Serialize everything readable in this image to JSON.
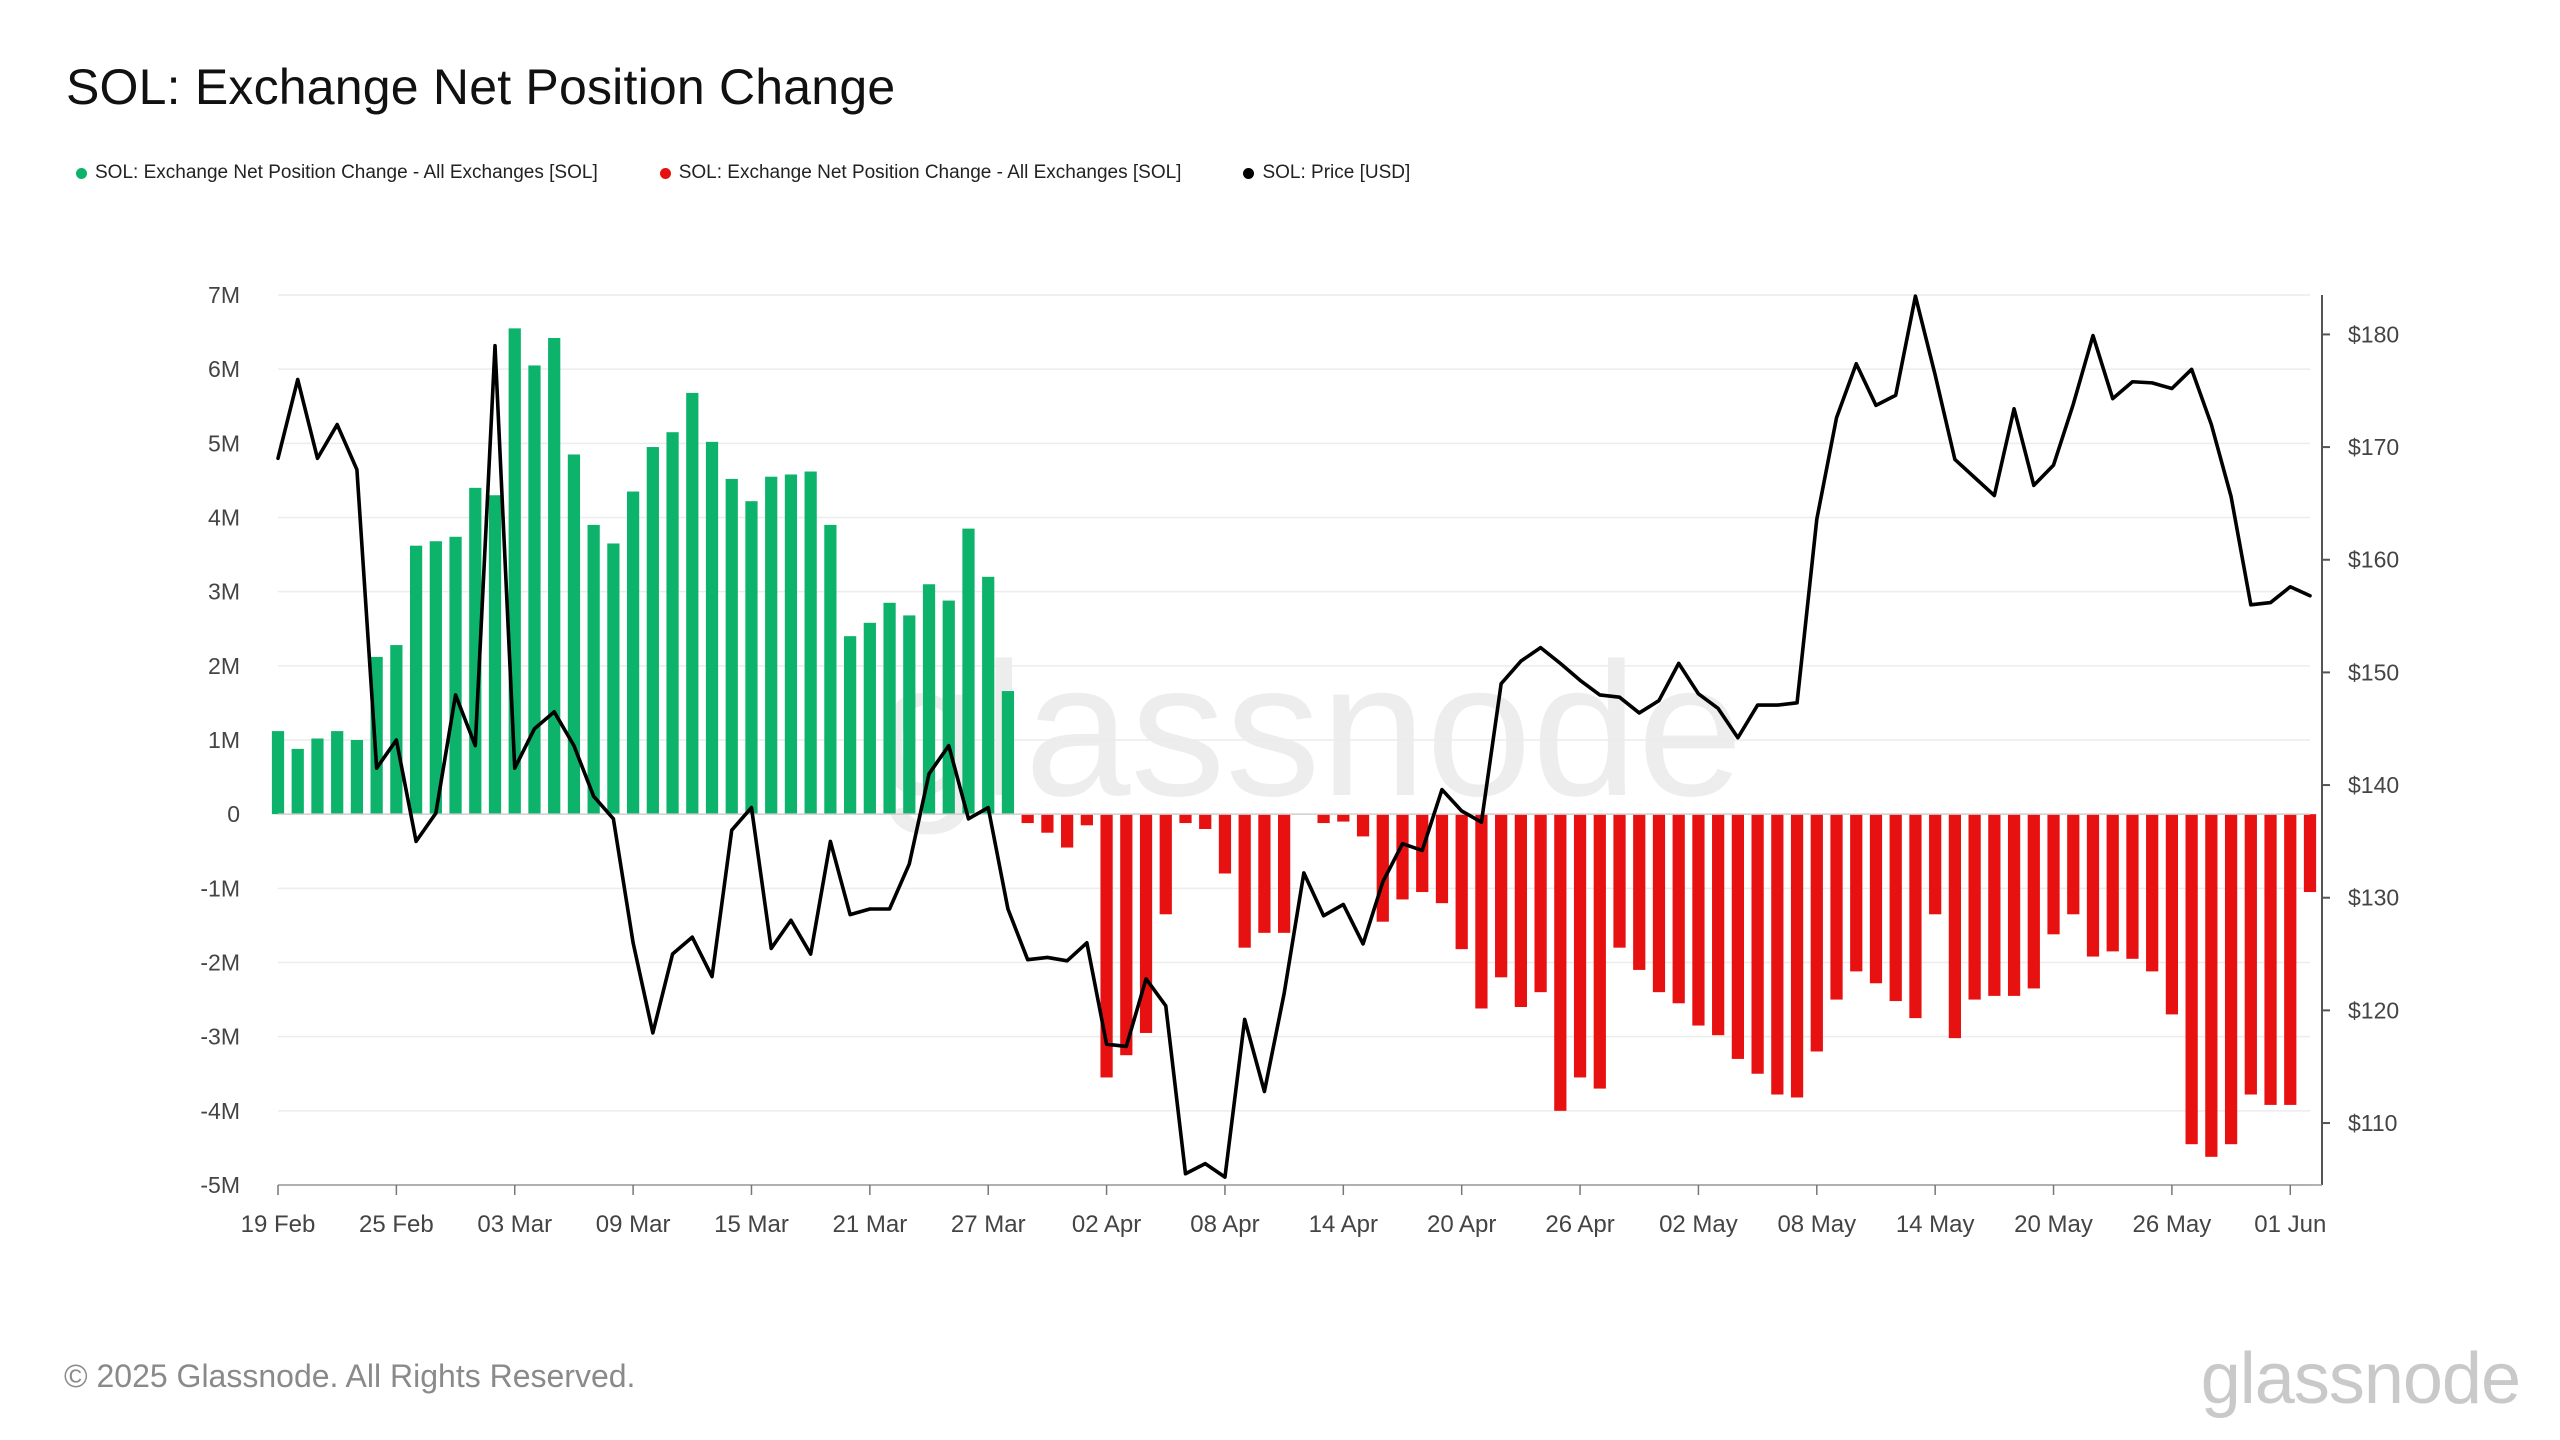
{
  "header": {
    "title": "SOL: Exchange Net Position Change"
  },
  "legend": [
    {
      "label": "SOL: Exchange Net Position Change - All Exchanges [SOL]",
      "color": "#0db36b"
    },
    {
      "label": "SOL: Exchange Net Position Change - All Exchanges [SOL]",
      "color": "#e81111"
    },
    {
      "label": "SOL: Price [USD]",
      "color": "#000000"
    }
  ],
  "footer": {
    "copyright": "© 2025 Glassnode. All Rights Reserved.",
    "brand": "glassnode"
  },
  "chart_data": {
    "type": "bar",
    "title": "SOL: Exchange Net Position Change",
    "x_start": "2025-02-19",
    "x_end": "2025-06-02",
    "x_ticks": [
      "19 Feb",
      "25 Feb",
      "03 Mar",
      "09 Mar",
      "15 Mar",
      "21 Mar",
      "27 Mar",
      "02 Apr",
      "08 Apr",
      "14 Apr",
      "20 Apr",
      "26 Apr",
      "02 May",
      "08 May",
      "14 May",
      "20 May",
      "26 May",
      "01 Jun"
    ],
    "left_axis": {
      "ticks": [
        "7M",
        "6M",
        "5M",
        "4M",
        "3M",
        "2M",
        "1M",
        "0",
        "-1M",
        "-2M",
        "-3M",
        "-4M",
        "-5M"
      ],
      "ylim": [
        -5000000,
        7000000
      ]
    },
    "right_axis": {
      "ticks": [
        "$180",
        "$170",
        "$160",
        "$150",
        "$140",
        "$130",
        "$120",
        "$110"
      ],
      "ylim": [
        104.5,
        183.5
      ]
    },
    "colors": {
      "positive": "#0db36b",
      "negative": "#e81111",
      "price": "#000000"
    },
    "series": [
      {
        "kind": "bar",
        "values": [
          1.12,
          0.88,
          1.02,
          1.12,
          1.0,
          2.12,
          2.28,
          3.62,
          3.68,
          3.74,
          4.4,
          4.3,
          6.55,
          6.05,
          6.42,
          4.85,
          3.9,
          3.65,
          4.35,
          4.95,
          5.15,
          5.68,
          5.02,
          4.52,
          4.22,
          4.55,
          4.58,
          4.62,
          3.9,
          2.4,
          2.58,
          2.85,
          2.68,
          3.1,
          2.88,
          3.85,
          3.2,
          1.66,
          -0.12,
          -0.25,
          -0.45,
          -0.15,
          -3.55,
          -3.25,
          -2.95,
          -1.35,
          -0.12,
          -0.2,
          -0.8,
          -1.8,
          -1.6,
          -1.6,
          0,
          -0.12,
          -0.1,
          -0.3,
          -1.45,
          -1.15,
          -1.05,
          -1.2,
          -1.82,
          -2.62,
          -2.2,
          -2.6,
          -2.4,
          -4.0,
          -3.55,
          -3.7,
          -1.8,
          -2.1,
          -2.4,
          -2.55,
          -2.85,
          -2.98,
          -3.3,
          -3.5,
          -3.78,
          -3.82,
          -3.2,
          -2.5,
          -2.12,
          -2.28,
          -2.52,
          -2.75,
          -1.35,
          -3.02,
          -2.5,
          -2.45,
          -2.45,
          -2.35,
          -1.62,
          -1.35,
          -1.92,
          -1.85,
          -1.95,
          -2.12,
          -2.7,
          -4.45,
          -4.62,
          -4.45,
          -3.78,
          -3.92,
          -3.92,
          -1.05
        ]
      },
      {
        "name": "SOL: Price [USD]",
        "kind": "line",
        "values": [
          169,
          176,
          169,
          172,
          168,
          141.5,
          144,
          135,
          137.5,
          148,
          143.5,
          179,
          141.5,
          145,
          146.5,
          143.5,
          139,
          137,
          126,
          118,
          125,
          126.5,
          123,
          136,
          138,
          125.5,
          128,
          125,
          135,
          128.5,
          129,
          129,
          133,
          141,
          143.5,
          137,
          138,
          129,
          124.5,
          124.7,
          124.4,
          126,
          117,
          116.8,
          122.8,
          120.4,
          105.5,
          106.4,
          105.2,
          119.2,
          112.8,
          121.5,
          132.2,
          128.4,
          129.4,
          125.9,
          131.4,
          134.8,
          134.2,
          139.6,
          137.7,
          136.7,
          149,
          151,
          152.2,
          150.8,
          149.3,
          148,
          147.8,
          146.4,
          147.5,
          150.8,
          148.1,
          146.8,
          144.2,
          147.1,
          147.1,
          147.3,
          163.6,
          172.6,
          177.4,
          173.7,
          174.6,
          183.4,
          176.4,
          168.9,
          167.3,
          165.7,
          173.4,
          166.6,
          168.4,
          173.8,
          179.9,
          174.3,
          175.8,
          175.7,
          175.2,
          176.9,
          172,
          165.6,
          156,
          156.2,
          157.6,
          156.8
        ]
      }
    ]
  }
}
